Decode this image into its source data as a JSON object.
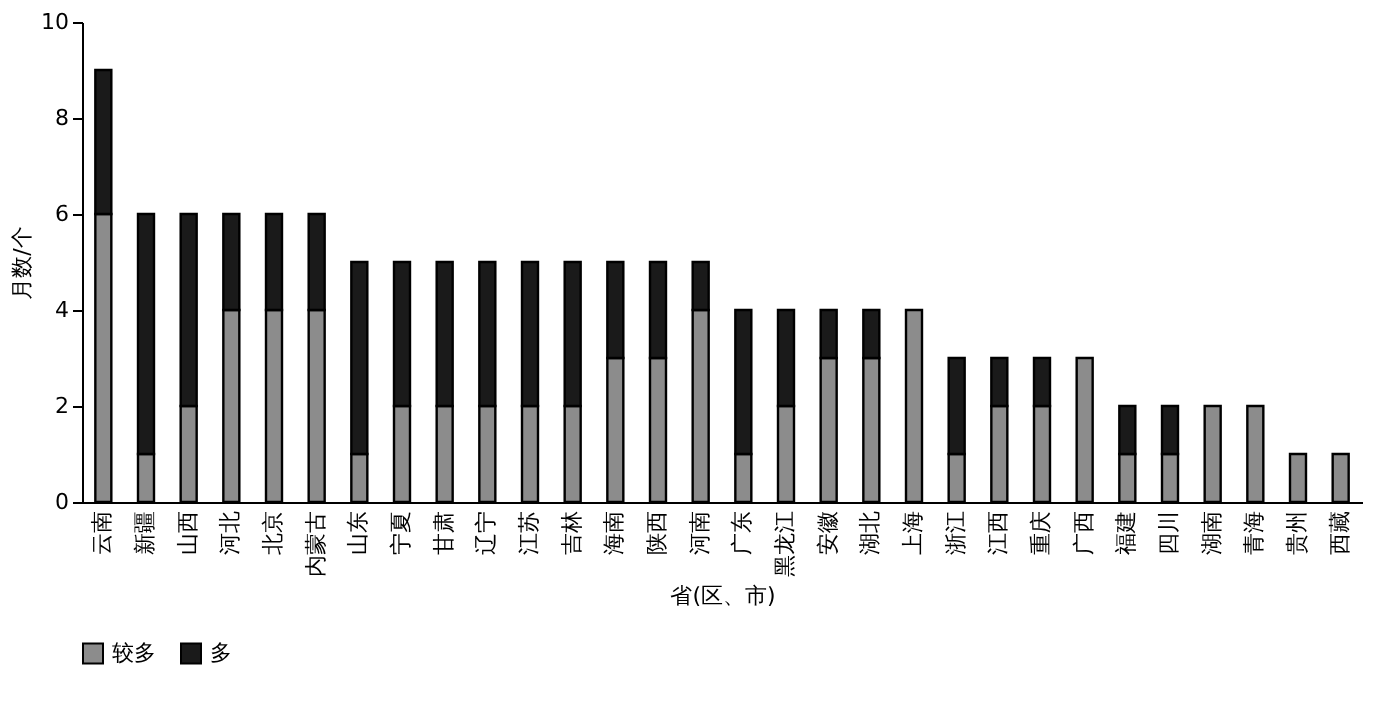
{
  "chart_data": {
    "type": "bar",
    "stacked": true,
    "xlabel": "省(区、市)",
    "ylabel": "月数/个",
    "categories": [
      "云南",
      "新疆",
      "山西",
      "河北",
      "北京",
      "内蒙古",
      "山东",
      "宁夏",
      "甘肃",
      "辽宁",
      "江苏",
      "吉林",
      "海南",
      "陕西",
      "河南",
      "广东",
      "黑龙江",
      "安徽",
      "湖北",
      "上海",
      "浙江",
      "江西",
      "重庆",
      "广西",
      "福建",
      "四川",
      "湖南",
      "青海",
      "贵州",
      "西藏"
    ],
    "series": [
      {
        "name": "较多",
        "color": "#8c8c8c",
        "values": [
          6,
          1,
          2,
          4,
          4,
          4,
          1,
          2,
          2,
          2,
          2,
          2,
          3,
          3,
          4,
          1,
          2,
          3,
          3,
          4,
          1,
          2,
          2,
          3,
          1,
          1,
          2,
          2,
          1,
          1
        ]
      },
      {
        "name": "多",
        "color": "#1a1a1a",
        "values": [
          3,
          5,
          4,
          2,
          2,
          2,
          4,
          3,
          3,
          3,
          3,
          3,
          2,
          2,
          1,
          3,
          2,
          1,
          1,
          0,
          2,
          1,
          1,
          0,
          1,
          1,
          0,
          0,
          0,
          0
        ]
      }
    ],
    "ylim": [
      0,
      10
    ],
    "yticks": [
      0,
      2,
      4,
      6,
      8,
      10
    ],
    "grid": false,
    "legend": "bottom"
  }
}
